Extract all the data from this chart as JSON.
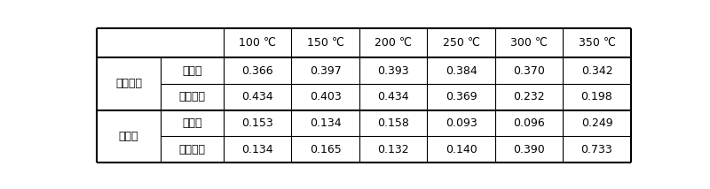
{
  "col_headers": [
    "100 ℃",
    "150 ℃",
    "200 ℃",
    "250 ℃",
    "300 ℃",
    "350 ℃"
  ],
  "row_group_labels": [
    "摩擦系数",
    "磨损率"
  ],
  "row_sub_labels": [
    "新工艺",
    "传统工艺"
  ],
  "data": {
    "摩擦系数": {
      "新工艺": [
        "0.366",
        "0.397",
        "0.393",
        "0.384",
        "0.370",
        "0.342"
      ],
      "传统工艺": [
        "0.434",
        "0.403",
        "0.434",
        "0.369",
        "0.232",
        "0.198"
      ]
    },
    "磨损率": {
      "新工艺": [
        "0.153",
        "0.134",
        "0.158",
        "0.093",
        "0.096",
        "0.249"
      ],
      "传统工艺": [
        "0.134",
        "0.165",
        "0.132",
        "0.140",
        "0.390",
        "0.733"
      ]
    }
  },
  "background_color": "#ffffff",
  "border_color": "#000000",
  "text_color": "#000000",
  "font_size": 9,
  "header_font_size": 9
}
